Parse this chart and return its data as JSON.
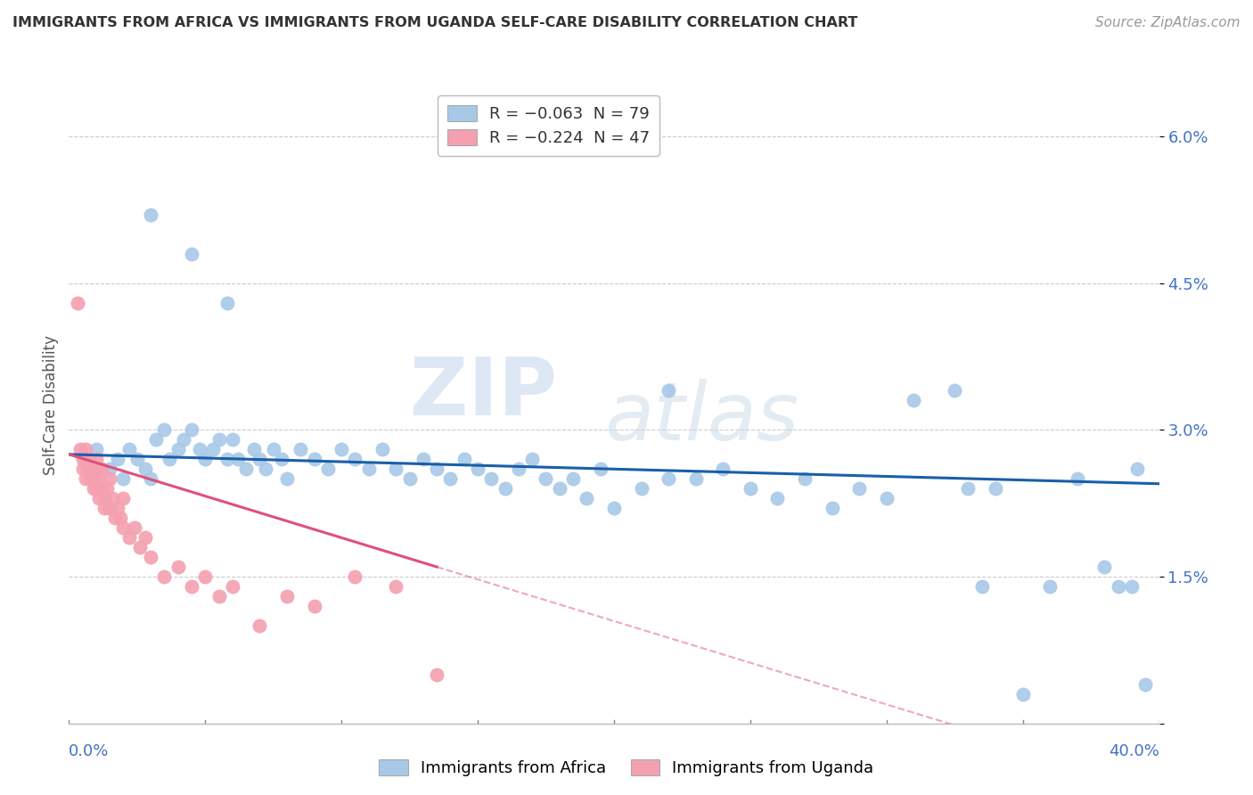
{
  "title": "IMMIGRANTS FROM AFRICA VS IMMIGRANTS FROM UGANDA SELF-CARE DISABILITY CORRELATION CHART",
  "source": "Source: ZipAtlas.com",
  "ylabel": "Self-Care Disability",
  "y_ticks": [
    0.0,
    1.5,
    3.0,
    4.5,
    6.0
  ],
  "y_tick_labels": [
    "",
    "1.5%",
    "3.0%",
    "4.5%",
    "6.0%"
  ],
  "x_range": [
    0.0,
    40.0
  ],
  "y_range": [
    0.0,
    6.5
  ],
  "legend_africa_r": "R = −0.063",
  "legend_africa_n": "N = 79",
  "legend_uganda_r": "R = −0.224",
  "legend_uganda_n": "N = 47",
  "africa_color": "#a8c8e8",
  "uganda_color": "#f4a0b0",
  "africa_line_color": "#1a5fa8",
  "uganda_line_color": "#e0507a",
  "background_color": "#ffffff",
  "africa_points_x": [
    1.0,
    1.5,
    1.8,
    2.0,
    2.2,
    2.5,
    2.8,
    3.0,
    3.2,
    3.5,
    3.7,
    4.0,
    4.2,
    4.5,
    4.8,
    5.0,
    5.3,
    5.5,
    5.8,
    6.0,
    6.2,
    6.5,
    6.8,
    7.0,
    7.2,
    7.5,
    7.8,
    8.0,
    8.5,
    9.0,
    9.5,
    10.0,
    10.5,
    11.0,
    11.5,
    12.0,
    12.5,
    13.0,
    13.5,
    14.0,
    14.5,
    15.0,
    15.5,
    16.0,
    16.5,
    17.0,
    17.5,
    18.0,
    18.5,
    19.0,
    19.5,
    20.0,
    21.0,
    22.0,
    23.0,
    24.0,
    25.0,
    26.0,
    27.0,
    28.0,
    29.0,
    30.0,
    31.0,
    32.5,
    33.0,
    33.5,
    34.0,
    35.0,
    36.0,
    37.0,
    38.0,
    38.5,
    39.0,
    39.2,
    39.5,
    3.0,
    4.5,
    5.8,
    22.0
  ],
  "africa_points_y": [
    2.8,
    2.6,
    2.7,
    2.5,
    2.8,
    2.7,
    2.6,
    2.5,
    2.9,
    3.0,
    2.7,
    2.8,
    2.9,
    3.0,
    2.8,
    2.7,
    2.8,
    2.9,
    2.7,
    2.9,
    2.7,
    2.6,
    2.8,
    2.7,
    2.6,
    2.8,
    2.7,
    2.5,
    2.8,
    2.7,
    2.6,
    2.8,
    2.7,
    2.6,
    2.8,
    2.6,
    2.5,
    2.7,
    2.6,
    2.5,
    2.7,
    2.6,
    2.5,
    2.4,
    2.6,
    2.7,
    2.5,
    2.4,
    2.5,
    2.3,
    2.6,
    2.2,
    2.4,
    2.5,
    2.5,
    2.6,
    2.4,
    2.3,
    2.5,
    2.2,
    2.4,
    2.3,
    3.3,
    3.4,
    2.4,
    1.4,
    2.4,
    0.3,
    1.4,
    2.5,
    1.6,
    1.4,
    1.4,
    2.6,
    0.4,
    5.2,
    4.8,
    4.3,
    3.4
  ],
  "uganda_points_x": [
    0.3,
    0.4,
    0.5,
    0.5,
    0.6,
    0.6,
    0.7,
    0.7,
    0.8,
    0.8,
    0.9,
    0.9,
    1.0,
    1.0,
    1.0,
    1.1,
    1.1,
    1.2,
    1.2,
    1.3,
    1.3,
    1.4,
    1.5,
    1.5,
    1.6,
    1.7,
    1.8,
    1.9,
    2.0,
    2.0,
    2.2,
    2.4,
    2.6,
    2.8,
    3.0,
    3.5,
    4.0,
    4.5,
    5.0,
    5.5,
    6.0,
    7.0,
    8.0,
    9.0,
    10.5,
    12.0,
    13.5
  ],
  "uganda_points_y": [
    4.3,
    2.8,
    2.7,
    2.6,
    2.8,
    2.5,
    2.7,
    2.6,
    2.5,
    2.6,
    2.4,
    2.5,
    2.6,
    2.4,
    2.7,
    2.3,
    2.5,
    2.4,
    2.6,
    2.3,
    2.2,
    2.4,
    2.2,
    2.5,
    2.3,
    2.1,
    2.2,
    2.1,
    2.0,
    2.3,
    1.9,
    2.0,
    1.8,
    1.9,
    1.7,
    1.5,
    1.6,
    1.4,
    1.5,
    1.3,
    1.4,
    1.0,
    1.3,
    1.2,
    1.5,
    1.4,
    0.5
  ],
  "uganda_solid_end_x": 13.5,
  "watermark_zip_x": 0.35,
  "watermark_zip_y": 0.58,
  "watermark_atlas_x": 0.55,
  "watermark_atlas_y": 0.52
}
